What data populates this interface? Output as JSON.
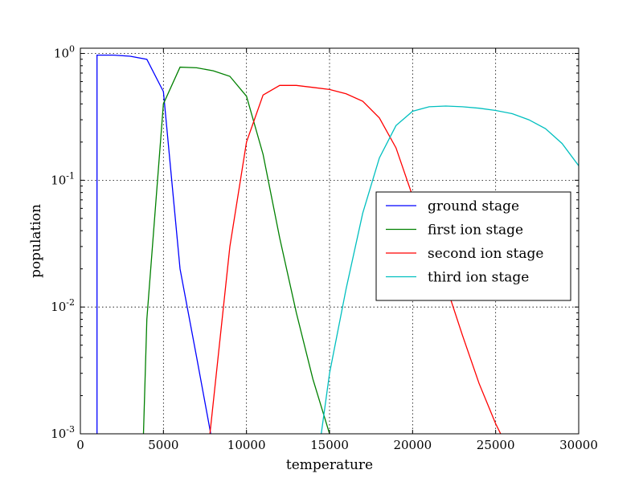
{
  "chart_data": {
    "type": "line",
    "xlabel": "temperature",
    "ylabel": "population",
    "xlim": [
      0,
      30000
    ],
    "ylim": [
      0.001,
      1.1
    ],
    "yscale": "log",
    "grid": true,
    "legend_position": "center-right",
    "x_ticks": [
      0,
      5000,
      10000,
      15000,
      20000,
      25000,
      30000
    ],
    "x_tick_labels": [
      "0",
      "5000",
      "10000",
      "15000",
      "20000",
      "25000",
      "30000"
    ],
    "y_ticks": [
      0.001,
      0.01,
      0.1,
      1
    ],
    "y_tick_labels": [
      {
        "base": "10",
        "exp": "-3"
      },
      {
        "base": "10",
        "exp": "-2"
      },
      {
        "base": "10",
        "exp": "-1"
      },
      {
        "base": "10",
        "exp": "0"
      }
    ],
    "series": [
      {
        "name": "ground stage",
        "color": "#0000ff",
        "x": [
          1000,
          1000,
          2000,
          3000,
          4000,
          5000,
          6000,
          7000,
          7850
        ],
        "y": [
          0.001,
          0.97,
          0.97,
          0.95,
          0.9,
          0.5,
          0.02,
          0.004,
          0.001
        ]
      },
      {
        "name": "first ion stage",
        "color": "#008000",
        "x": [
          3800,
          4000,
          5000,
          6000,
          7000,
          8000,
          9000,
          10000,
          11000,
          12000,
          13000,
          14000,
          15000
        ],
        "y": [
          0.001,
          0.008,
          0.4,
          0.78,
          0.77,
          0.73,
          0.66,
          0.46,
          0.16,
          0.035,
          0.009,
          0.0027,
          0.001
        ]
      },
      {
        "name": "second ion stage",
        "color": "#ff0000",
        "x": [
          7800,
          9000,
          10000,
          11000,
          12000,
          13000,
          14000,
          15000,
          16000,
          17000,
          18000,
          19000,
          20000,
          21000,
          22000,
          23000,
          24000,
          25000,
          25300
        ],
        "y": [
          0.001,
          0.03,
          0.2,
          0.47,
          0.56,
          0.56,
          0.54,
          0.52,
          0.48,
          0.42,
          0.31,
          0.18,
          0.075,
          0.036,
          0.015,
          0.006,
          0.0025,
          0.0012,
          0.001
        ]
      },
      {
        "name": "third ion stage",
        "color": "#00bfbf",
        "x": [
          14500,
          15000,
          16000,
          17000,
          18000,
          19000,
          20000,
          21000,
          22000,
          23000,
          24000,
          25000,
          26000,
          27000,
          28000,
          29000,
          30000
        ],
        "y": [
          0.001,
          0.003,
          0.014,
          0.055,
          0.15,
          0.27,
          0.35,
          0.38,
          0.385,
          0.38,
          0.37,
          0.355,
          0.335,
          0.3,
          0.255,
          0.195,
          0.13
        ]
      }
    ]
  }
}
